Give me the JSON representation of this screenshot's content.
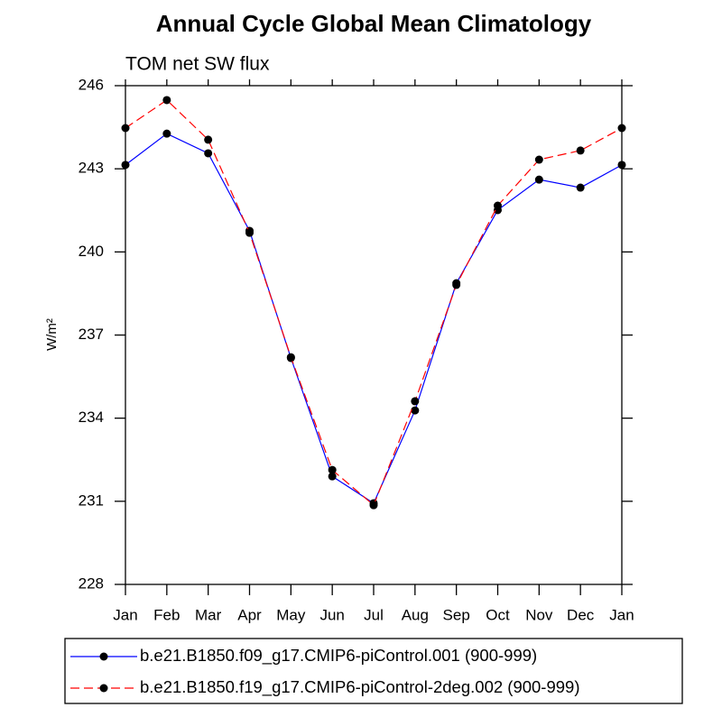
{
  "chart_data": {
    "type": "line",
    "title": "Annual Cycle Global Mean Climatology",
    "subtitle": "TOM net SW flux",
    "y_label": "W/m²",
    "categories": [
      "Jan",
      "Feb",
      "Mar",
      "Apr",
      "May",
      "Jun",
      "Jul",
      "Aug",
      "Sep",
      "Oct",
      "Nov",
      "Dec",
      "Jan"
    ],
    "series": [
      {
        "name": "b.e21.B1850.f09_g17.CMIP6-piControl.001 (900-999)",
        "color": "#0000ff",
        "linestyle": "solid",
        "values": [
          243.14,
          244.27,
          243.56,
          240.76,
          236.17,
          231.9,
          230.93,
          234.28,
          238.87,
          241.51,
          242.61,
          242.32,
          243.14
        ]
      },
      {
        "name": "b.e21.B1850.f19_g17.CMIP6-piControl-2deg.002 (900-999)",
        "color": "#ff0000",
        "linestyle": "dashed",
        "values": [
          244.47,
          245.48,
          244.05,
          240.69,
          236.2,
          232.13,
          230.86,
          234.61,
          238.81,
          241.67,
          243.33,
          243.66,
          244.47
        ]
      }
    ],
    "ylim": [
      228,
      246
    ],
    "yticks": [
      228,
      231,
      234,
      237,
      240,
      243,
      246
    ],
    "grid": false,
    "legend": "bottom"
  }
}
